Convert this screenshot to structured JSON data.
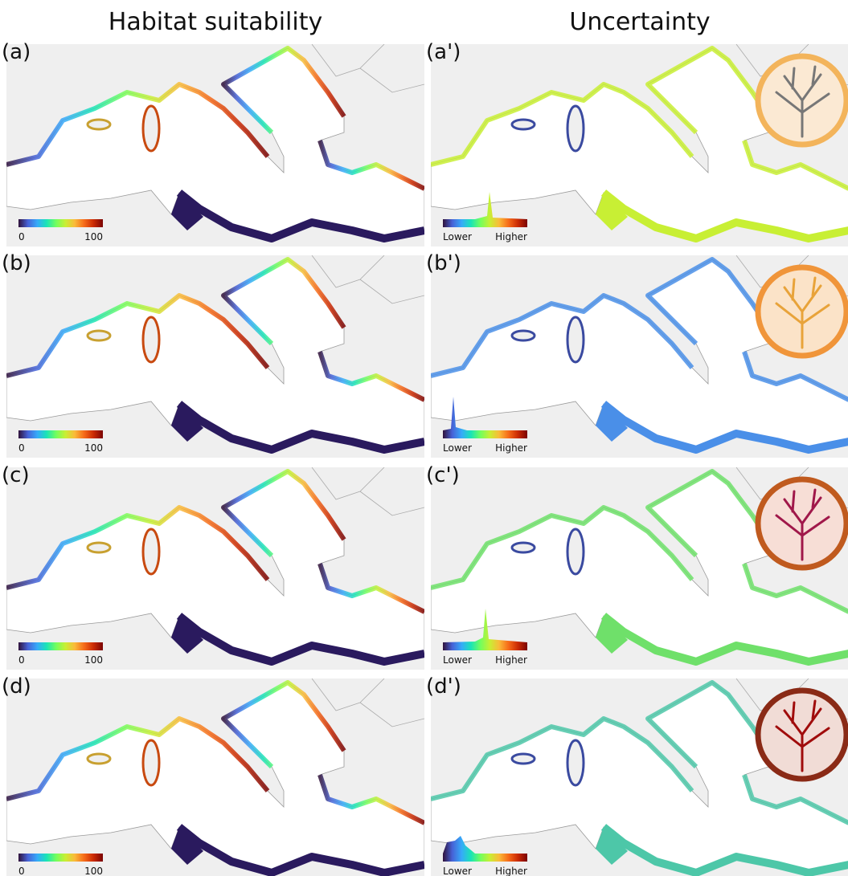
{
  "columns": [
    "Habitat suitability",
    "Uncertainty"
  ],
  "rows": [
    {
      "suitability": {
        "label": "(a)",
        "min": 0,
        "max": 100
      },
      "uncertainty": {
        "label": "(a')",
        "min": "Lower",
        "max": "Higher"
      }
    },
    {
      "suitability": {
        "label": "(b)",
        "min": 0,
        "max": 100
      },
      "uncertainty": {
        "label": "(b')",
        "min": "Lower",
        "max": "Higher"
      }
    },
    {
      "suitability": {
        "label": "(c)",
        "min": 0,
        "max": 100
      },
      "uncertainty": {
        "label": "(c')",
        "min": "Lower",
        "max": "Higher"
      }
    },
    {
      "suitability": {
        "label": "(d)",
        "min": 0,
        "max": 100
      },
      "uncertainty": {
        "label": "(d')",
        "min": "Lower",
        "max": "Higher"
      }
    }
  ]
}
